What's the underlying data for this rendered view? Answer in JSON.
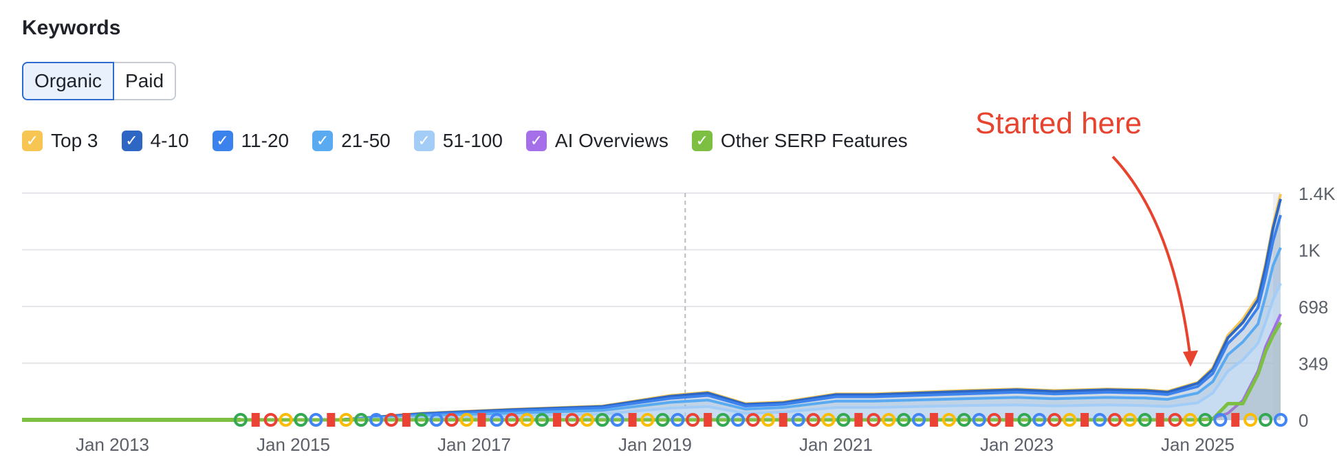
{
  "header": {
    "title": "Keywords"
  },
  "toggle": {
    "options": [
      "Organic",
      "Paid"
    ],
    "selected": "Organic"
  },
  "legend": [
    {
      "label": "Top 3",
      "color": "#f6c552",
      "icon": "check-icon"
    },
    {
      "label": "4-10",
      "color": "#2e67c3",
      "icon": "check-icon"
    },
    {
      "label": "11-20",
      "color": "#3b82ed",
      "icon": "check-icon"
    },
    {
      "label": "21-50",
      "color": "#5aaaf2",
      "icon": "check-icon"
    },
    {
      "label": "51-100",
      "color": "#a3cdf7",
      "icon": "check-icon"
    },
    {
      "label": "AI Overviews",
      "color": "#a46fe8",
      "icon": "check-icon"
    },
    {
      "label": "Other SERP Features",
      "color": "#7cbf43",
      "icon": "check-icon"
    }
  ],
  "annotation": {
    "text": "Started here",
    "color": "#e8432f"
  },
  "chart_data": {
    "type": "area",
    "x_start": "2012-01",
    "x_end": "2025-12",
    "xtick_labels": [
      "Jan 2013",
      "Jan 2015",
      "Jan 2017",
      "Jan 2019",
      "Jan 2021",
      "Jan 2023",
      "Jan 2025"
    ],
    "ytick_labels": [
      "0",
      "349",
      "698",
      "1K",
      "1.4K"
    ],
    "ylim": [
      0,
      1396
    ],
    "grid": true,
    "marker_line": "2019-05",
    "x": [
      "2012-01",
      "2014-06",
      "2015-07",
      "2016-06",
      "2017-06",
      "2018-06",
      "2019-03",
      "2019-08",
      "2020-01",
      "2020-06",
      "2021-01",
      "2021-06",
      "2022-06",
      "2023-01",
      "2023-06",
      "2024-01",
      "2024-06",
      "2024-09",
      "2025-01",
      "2025-03",
      "2025-05",
      "2025-07",
      "2025-09",
      "2025-10",
      "2025-11",
      "2025-12"
    ],
    "series": [
      {
        "name": "Top 3",
        "color": "#f6c552",
        "values": [
          0,
          0,
          0,
          40,
          65,
          85,
          150,
          170,
          100,
          110,
          160,
          160,
          180,
          190,
          180,
          190,
          185,
          175,
          230,
          320,
          520,
          620,
          760,
          960,
          1200,
          1390
        ]
      },
      {
        "name": "4-10",
        "color": "#2e67c3",
        "values": [
          0,
          0,
          0,
          38,
          62,
          82,
          145,
          165,
          95,
          105,
          155,
          155,
          175,
          185,
          175,
          185,
          180,
          170,
          225,
          310,
          505,
          600,
          740,
          940,
          1180,
          1360
        ]
      },
      {
        "name": "11-20",
        "color": "#3b82ed",
        "values": [
          0,
          0,
          0,
          33,
          55,
          74,
          132,
          150,
          85,
          95,
          142,
          142,
          160,
          170,
          160,
          170,
          165,
          156,
          205,
          285,
          470,
          560,
          690,
          880,
          1100,
          1260
        ]
      },
      {
        "name": "21-50",
        "color": "#5aaaf2",
        "values": [
          0,
          0,
          0,
          24,
          42,
          58,
          108,
          122,
          66,
          76,
          115,
          115,
          130,
          138,
          130,
          138,
          134,
          126,
          165,
          235,
          400,
          480,
          590,
          760,
          950,
          1060
        ]
      },
      {
        "name": "51-100",
        "color": "#a3cdf7",
        "values": [
          0,
          0,
          0,
          12,
          24,
          36,
          72,
          82,
          40,
          48,
          76,
          76,
          88,
          92,
          86,
          92,
          88,
          82,
          105,
          165,
          300,
          370,
          470,
          600,
          740,
          840
        ]
      },
      {
        "name": "AI Overviews",
        "color": "#a46fe8",
        "values": [
          0,
          0,
          0,
          0,
          0,
          0,
          0,
          0,
          0,
          0,
          0,
          0,
          0,
          0,
          0,
          0,
          0,
          0,
          0,
          10,
          40,
          120,
          300,
          450,
          550,
          650
        ]
      },
      {
        "name": "Other SERP Features",
        "color": "#7cbf43",
        "values": [
          0,
          0,
          0,
          0,
          0,
          0,
          0,
          0,
          0,
          0,
          0,
          0,
          0,
          0,
          0,
          0,
          0,
          0,
          0,
          5,
          100,
          100,
          280,
          420,
          520,
          600
        ]
      }
    ]
  }
}
